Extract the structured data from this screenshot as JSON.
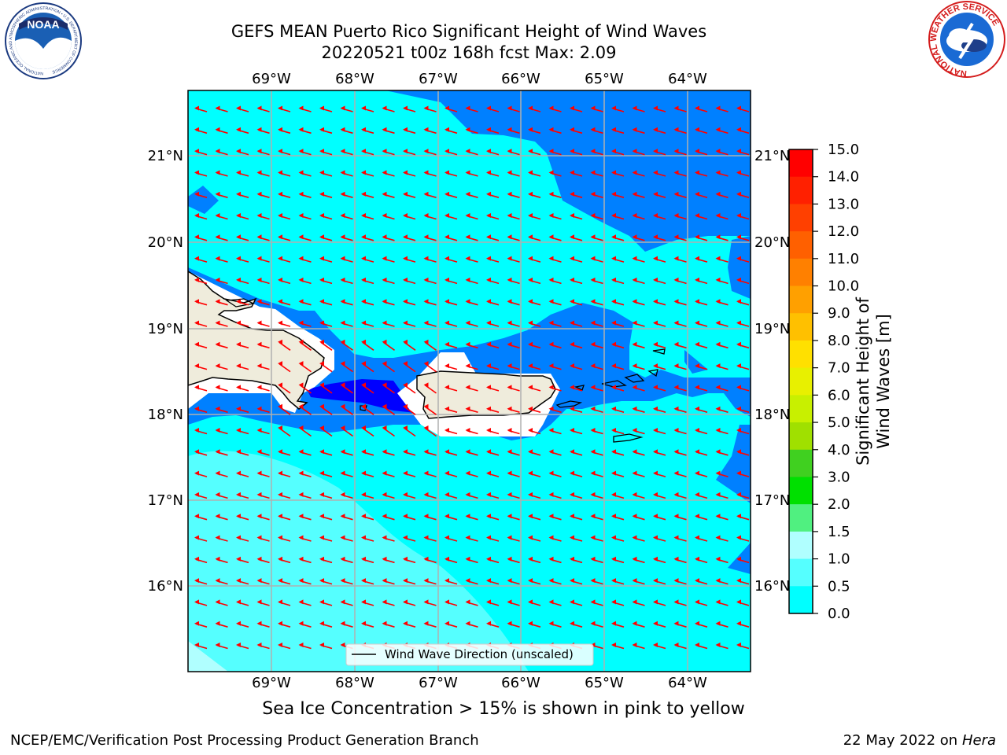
{
  "title": {
    "line1": "GEFS MEAN Puerto Rico Significant Height of Wind Waves",
    "line2": "20220521 t00z 168h fcst   Max: 2.09"
  },
  "map": {
    "lon_labels": [
      "69°W",
      "68°W",
      "67°W",
      "66°W",
      "65°W",
      "64°W"
    ],
    "lat_labels": [
      "21°N",
      "20°N",
      "19°N",
      "18°N",
      "17°N",
      "16°N"
    ],
    "legend_label": "Wind Wave Direction (unscaled)",
    "arrow_color": "#ff0000",
    "land_color": "#efecdc"
  },
  "colorbar": {
    "title": "Significant Height of Wind Waves [m]",
    "ticks": [
      "15.0",
      "14.0",
      "13.0",
      "12.0",
      "11.0",
      "10.0",
      "9.0",
      "8.0",
      "7.0",
      "6.0",
      "5.0",
      "4.0",
      "3.0",
      "2.0",
      "1.5",
      "1.0",
      "0.5",
      "0.0"
    ],
    "colors": [
      "#ff0000",
      "#ff2000",
      "#ff4000",
      "#ff6000",
      "#ff8000",
      "#ffa000",
      "#ffc000",
      "#ffe000",
      "#e8f000",
      "#c8f000",
      "#a0e000",
      "#40d020",
      "#00e000",
      "#50f080",
      "#b0ffff",
      "#55ffff",
      "#00ffff",
      "#0080ff",
      "#0000ff"
    ]
  },
  "footer": {
    "note": "Sea Ice Concentration > 15% is shown in pink to yellow",
    "left": "NCEP/EMC/Verification Post Processing Product Generation Branch",
    "date": "22 May 2022 on",
    "host": "Hera"
  },
  "logos": {
    "noaa_text": "NOAA",
    "noaa_ring": "NATIONAL OCEANIC AND ATMOSPHERIC ADMINISTRATION • U.S. DEPARTMENT OF COMMERCE",
    "nws_ring": "NATIONAL WEATHER SERVICE"
  }
}
